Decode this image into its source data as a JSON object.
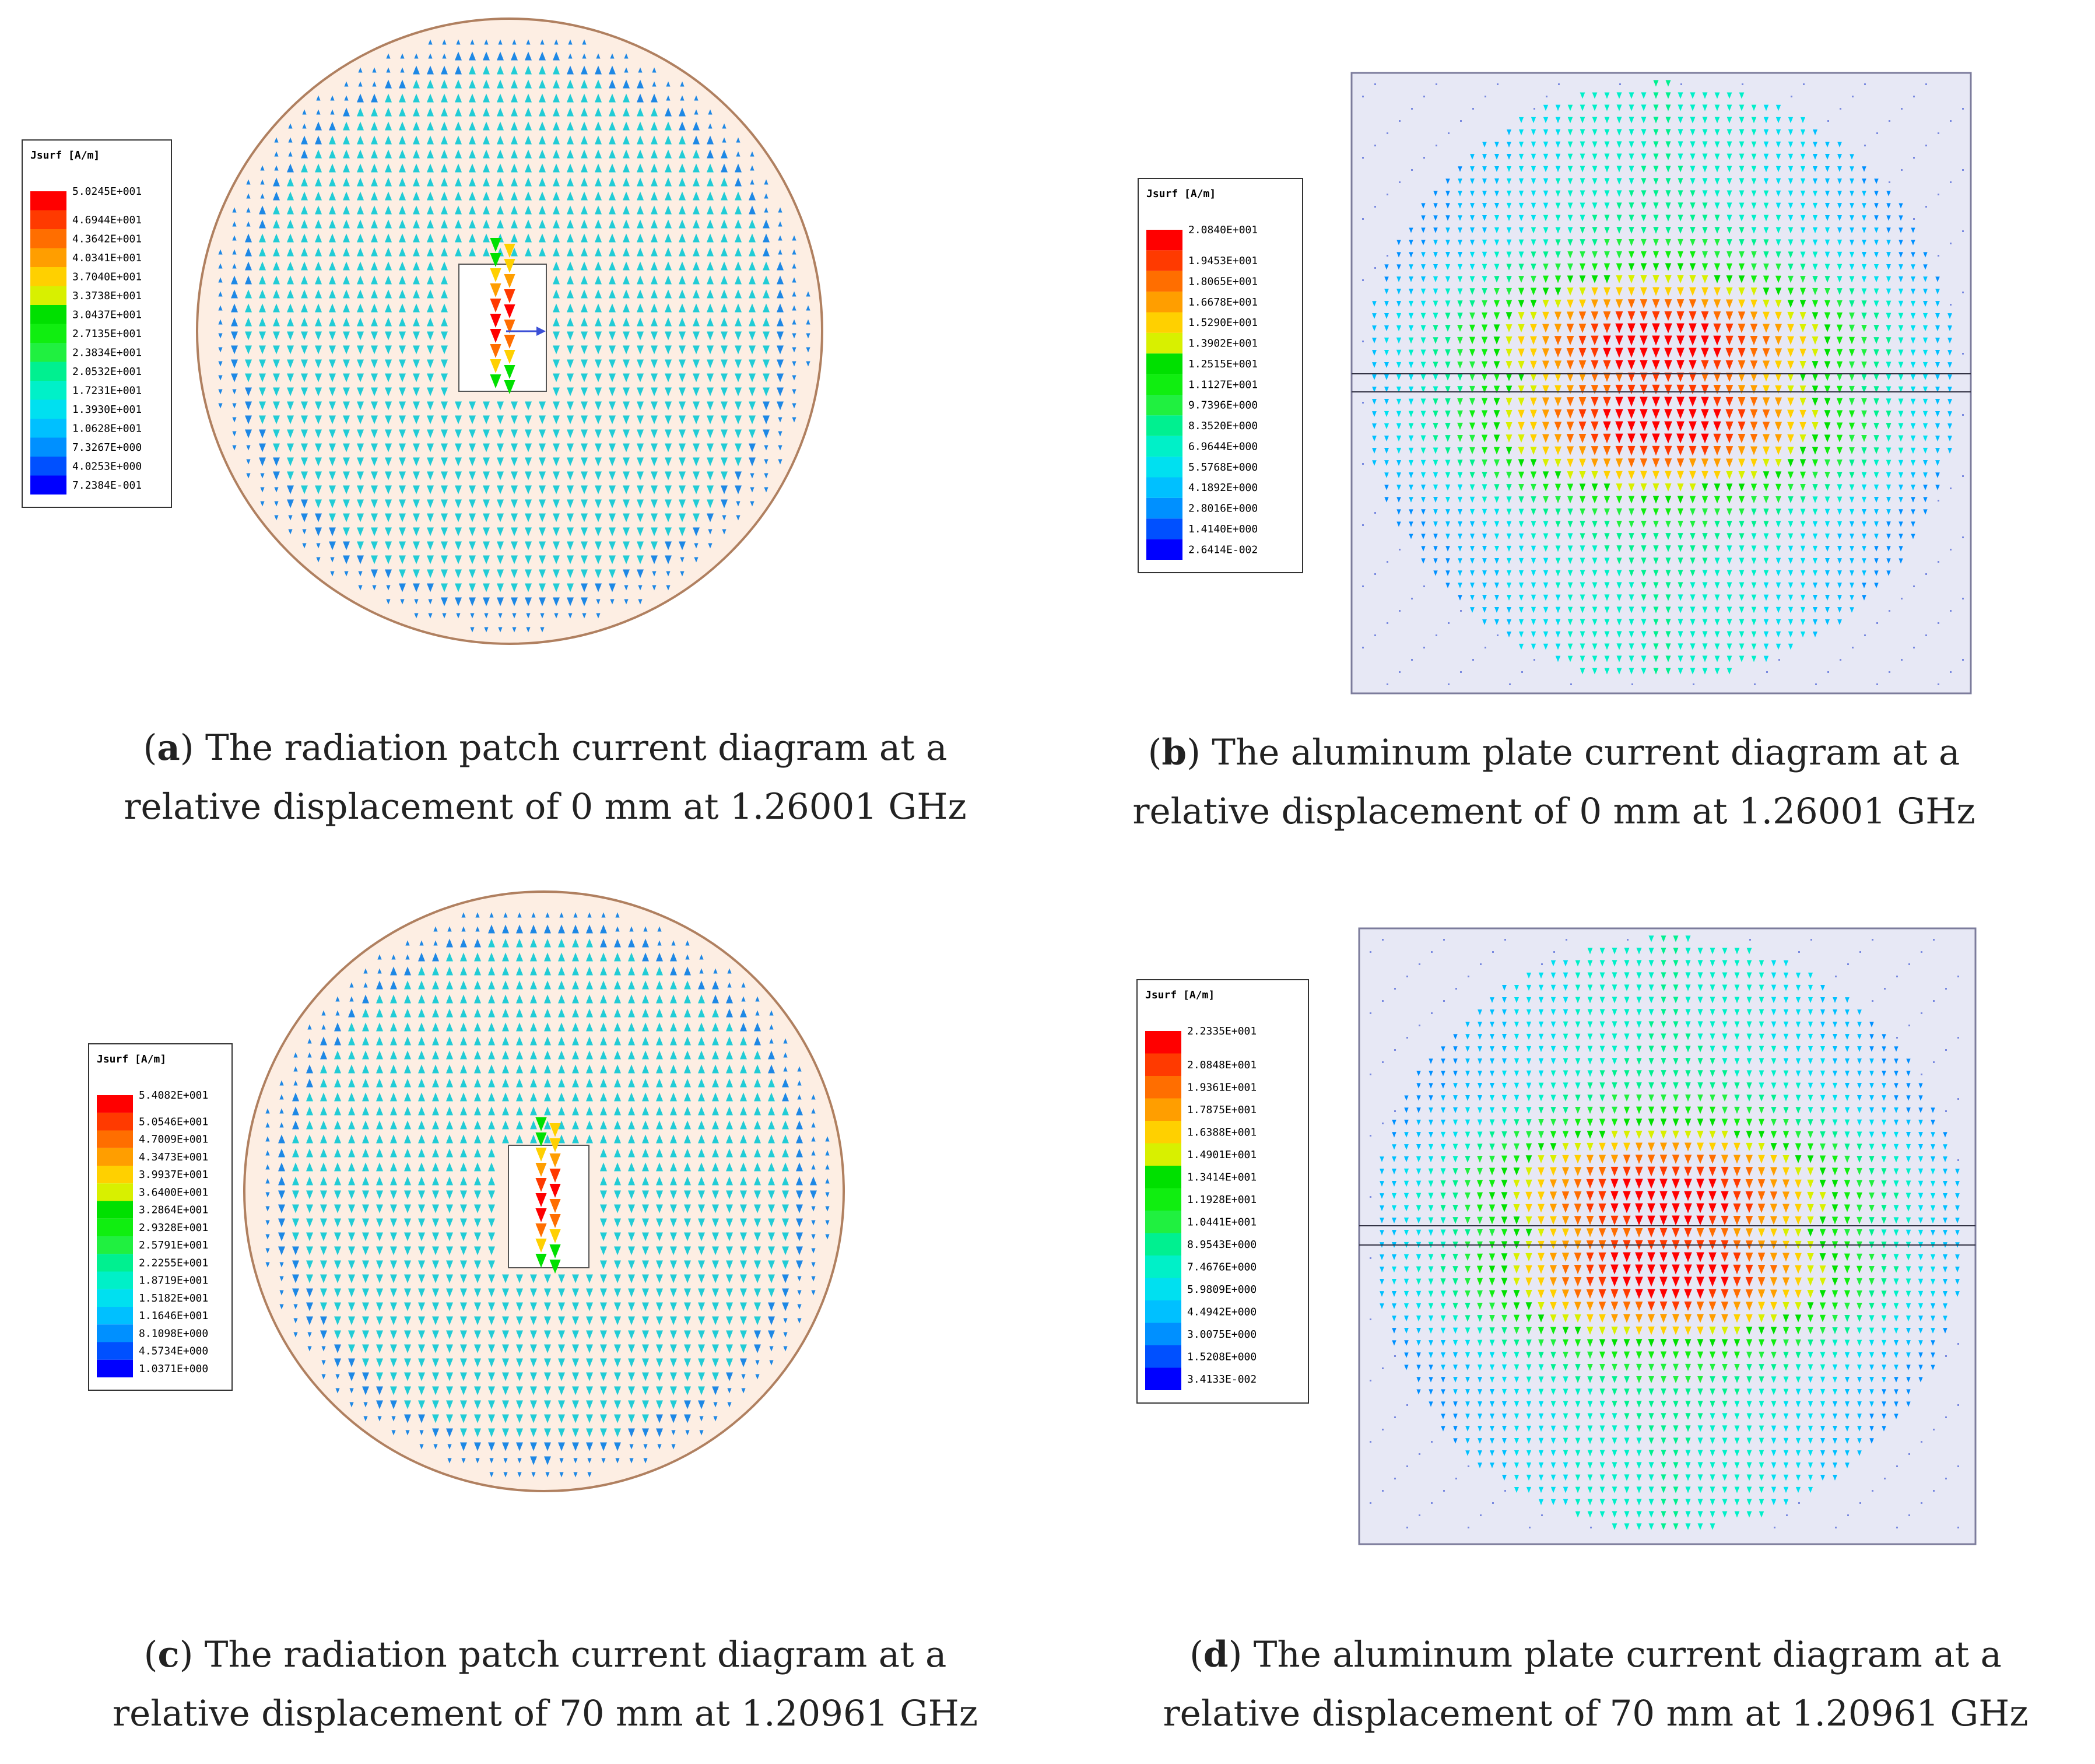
{
  "figure": {
    "panels": [
      {
        "id": "a",
        "kind": "patch",
        "legend": {
          "title": "Jsurf [A/m]",
          "values": [
            "5.0245E+001",
            "4.6944E+001",
            "4.3642E+001",
            "4.0341E+001",
            "3.7040E+001",
            "3.3738E+001",
            "3.0437E+001",
            "2.7135E+001",
            "2.3834E+001",
            "2.0532E+001",
            "1.7231E+001",
            "1.3930E+001",
            "1.0628E+001",
            "7.3267E+000",
            "4.0253E+000",
            "7.2384E-001"
          ]
        },
        "caption": {
          "label": "a",
          "line1": ") The radiation patch current diagram at a",
          "line2": "relative displacement of 0 mm at 1.26001 GHz"
        }
      },
      {
        "id": "b",
        "kind": "plate",
        "legend": {
          "title": "Jsurf [A/m]",
          "values": [
            "2.0840E+001",
            "1.9453E+001",
            "1.8065E+001",
            "1.6678E+001",
            "1.5290E+001",
            "1.3902E+001",
            "1.2515E+001",
            "1.1127E+001",
            "9.7396E+000",
            "8.3520E+000",
            "6.9644E+000",
            "5.5768E+000",
            "4.1892E+000",
            "2.8016E+000",
            "1.4140E+000",
            "2.6414E-002"
          ]
        },
        "caption": {
          "label": "b",
          "line1": ") The aluminum plate current diagram at a",
          "line2": "relative displacement of 0 mm at 1.26001 GHz"
        }
      },
      {
        "id": "c",
        "kind": "patch",
        "legend": {
          "title": "Jsurf [A/m]",
          "values": [
            "5.4082E+001",
            "5.0546E+001",
            "4.7009E+001",
            "4.3473E+001",
            "3.9937E+001",
            "3.6400E+001",
            "3.2864E+001",
            "2.9328E+001",
            "2.5791E+001",
            "2.2255E+001",
            "1.8719E+001",
            "1.5182E+001",
            "1.1646E+001",
            "8.1098E+000",
            "4.5734E+000",
            "1.0371E+000"
          ]
        },
        "caption": {
          "label": "c",
          "line1": ") The radiation patch current diagram at a",
          "line2": "relative displacement of 70 mm at 1.20961 GHz"
        }
      },
      {
        "id": "d",
        "kind": "plate",
        "legend": {
          "title": "Jsurf [A/m]",
          "values": [
            "2.2335E+001",
            "2.0848E+001",
            "1.9361E+001",
            "1.7875E+001",
            "1.6388E+001",
            "1.4901E+001",
            "1.3414E+001",
            "1.1928E+001",
            "1.0441E+001",
            "8.9543E+000",
            "7.4676E+000",
            "5.9809E+000",
            "4.4942E+000",
            "3.0075E+000",
            "1.5208E+000",
            "3.4133E-002"
          ]
        },
        "caption": {
          "label": "d",
          "line1": ") The aluminum plate current diagram at a",
          "line2": "relative displacement of 70 mm at 1.20961 GHz"
        }
      }
    ],
    "colors": {
      "scale": [
        "#ff0000",
        "#ff3a00",
        "#ff6e00",
        "#ff9e00",
        "#ffd000",
        "#d8f000",
        "#00e000",
        "#10ee10",
        "#20f040",
        "#00f090",
        "#00f0c8",
        "#00e0f0",
        "#00c0ff",
        "#0090ff",
        "#0050ff",
        "#0000ff"
      ],
      "patch_fill": "#fdeee3",
      "patch_border": "#b08060",
      "plate_fill": "#e7e8f5",
      "plate_border": "#7c7c9c",
      "arrow_low": "#22ccd6",
      "arrow_blue": "#1e88e5"
    }
  }
}
